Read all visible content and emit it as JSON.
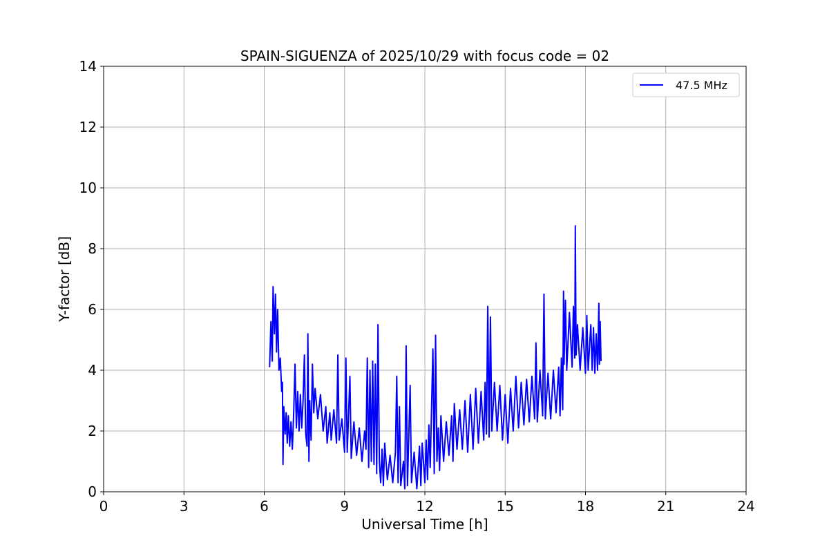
{
  "chart_data": {
    "type": "line",
    "title": "SPAIN-SIGUENZA of 2025/10/29 with focus code = 02",
    "xlabel": "Universal Time [h]",
    "ylabel": "Y-factor [dB]",
    "xlim": [
      0,
      24
    ],
    "ylim": [
      0,
      14
    ],
    "xticks": [
      0,
      3,
      6,
      9,
      12,
      15,
      18,
      21,
      24
    ],
    "yticks": [
      0,
      2,
      4,
      6,
      8,
      10,
      12,
      14
    ],
    "grid": true,
    "legend_position": "top-right",
    "series": [
      {
        "name": "47.5 MHz",
        "color": "#0000ff",
        "points": [
          [
            6.2,
            4.1
          ],
          [
            6.25,
            5.6
          ],
          [
            6.3,
            4.3
          ],
          [
            6.33,
            6.75
          ],
          [
            6.38,
            5.2
          ],
          [
            6.42,
            6.5
          ],
          [
            6.46,
            4.6
          ],
          [
            6.5,
            6.0
          ],
          [
            6.55,
            4.0
          ],
          [
            6.6,
            4.4
          ],
          [
            6.65,
            3.3
          ],
          [
            6.68,
            3.6
          ],
          [
            6.7,
            0.9
          ],
          [
            6.73,
            2.8
          ],
          [
            6.78,
            1.9
          ],
          [
            6.82,
            2.6
          ],
          [
            6.86,
            1.6
          ],
          [
            6.9,
            2.5
          ],
          [
            6.95,
            1.5
          ],
          [
            7.0,
            2.3
          ],
          [
            7.05,
            1.4
          ],
          [
            7.1,
            2.6
          ],
          [
            7.15,
            4.2
          ],
          [
            7.2,
            2.1
          ],
          [
            7.25,
            3.3
          ],
          [
            7.3,
            2.0
          ],
          [
            7.35,
            3.2
          ],
          [
            7.4,
            2.1
          ],
          [
            7.45,
            3.0
          ],
          [
            7.5,
            4.5
          ],
          [
            7.55,
            1.9
          ],
          [
            7.6,
            1.5
          ],
          [
            7.63,
            5.2
          ],
          [
            7.67,
            1.0
          ],
          [
            7.7,
            3.0
          ],
          [
            7.75,
            1.7
          ],
          [
            7.8,
            4.2
          ],
          [
            7.85,
            2.6
          ],
          [
            7.9,
            3.4
          ],
          [
            8.0,
            2.4
          ],
          [
            8.1,
            3.2
          ],
          [
            8.2,
            2.0
          ],
          [
            8.3,
            2.8
          ],
          [
            8.35,
            1.6
          ],
          [
            8.45,
            2.6
          ],
          [
            8.5,
            1.7
          ],
          [
            8.6,
            2.7
          ],
          [
            8.7,
            1.6
          ],
          [
            8.75,
            4.5
          ],
          [
            8.8,
            1.7
          ],
          [
            8.9,
            2.4
          ],
          [
            9.0,
            1.3
          ],
          [
            9.05,
            4.4
          ],
          [
            9.1,
            1.3
          ],
          [
            9.2,
            3.8
          ],
          [
            9.25,
            1.1
          ],
          [
            9.35,
            2.3
          ],
          [
            9.45,
            1.2
          ],
          [
            9.55,
            2.1
          ],
          [
            9.65,
            1.0
          ],
          [
            9.75,
            2.0
          ],
          [
            9.8,
            1.4
          ],
          [
            9.85,
            4.4
          ],
          [
            9.9,
            0.8
          ],
          [
            9.95,
            4.0
          ],
          [
            10.0,
            1.0
          ],
          [
            10.05,
            4.3
          ],
          [
            10.1,
            0.9
          ],
          [
            10.15,
            4.2
          ],
          [
            10.2,
            0.6
          ],
          [
            10.25,
            5.5
          ],
          [
            10.3,
            1.0
          ],
          [
            10.35,
            0.3
          ],
          [
            10.4,
            1.4
          ],
          [
            10.45,
            0.2
          ],
          [
            10.5,
            1.6
          ],
          [
            10.6,
            0.4
          ],
          [
            10.7,
            1.2
          ],
          [
            10.8,
            0.3
          ],
          [
            10.9,
            1.3
          ],
          [
            10.95,
            3.8
          ],
          [
            11.0,
            0.3
          ],
          [
            11.05,
            2.8
          ],
          [
            11.1,
            0.2
          ],
          [
            11.2,
            1.0
          ],
          [
            11.25,
            0.1
          ],
          [
            11.3,
            4.8
          ],
          [
            11.35,
            0.2
          ],
          [
            11.45,
            3.5
          ],
          [
            11.5,
            0.3
          ],
          [
            11.6,
            1.3
          ],
          [
            11.7,
            0.1
          ],
          [
            11.8,
            1.5
          ],
          [
            11.85,
            0.2
          ],
          [
            11.9,
            1.6
          ],
          [
            12.0,
            0.3
          ],
          [
            12.05,
            1.7
          ],
          [
            12.1,
            0.4
          ],
          [
            12.15,
            2.2
          ],
          [
            12.2,
            0.8
          ],
          [
            12.3,
            4.7
          ],
          [
            12.35,
            0.6
          ],
          [
            12.4,
            5.15
          ],
          [
            12.45,
            1.0
          ],
          [
            12.5,
            2.1
          ],
          [
            12.55,
            0.7
          ],
          [
            12.6,
            2.5
          ],
          [
            12.7,
            1.0
          ],
          [
            12.8,
            2.3
          ],
          [
            12.9,
            1.2
          ],
          [
            13.0,
            2.5
          ],
          [
            13.05,
            1.0
          ],
          [
            13.1,
            2.9
          ],
          [
            13.2,
            1.4
          ],
          [
            13.3,
            2.7
          ],
          [
            13.4,
            1.4
          ],
          [
            13.5,
            3.0
          ],
          [
            13.6,
            1.3
          ],
          [
            13.7,
            3.2
          ],
          [
            13.8,
            1.4
          ],
          [
            13.9,
            3.4
          ],
          [
            14.0,
            1.6
          ],
          [
            14.1,
            3.3
          ],
          [
            14.2,
            1.7
          ],
          [
            14.25,
            3.6
          ],
          [
            14.3,
            1.9
          ],
          [
            14.35,
            6.1
          ],
          [
            14.4,
            1.8
          ],
          [
            14.45,
            5.75
          ],
          [
            14.5,
            2.0
          ],
          [
            14.6,
            3.6
          ],
          [
            14.7,
            2.0
          ],
          [
            14.8,
            3.5
          ],
          [
            14.9,
            1.7
          ],
          [
            15.0,
            3.2
          ],
          [
            15.1,
            1.6
          ],
          [
            15.2,
            3.4
          ],
          [
            15.3,
            2.0
          ],
          [
            15.4,
            3.8
          ],
          [
            15.5,
            2.1
          ],
          [
            15.6,
            3.6
          ],
          [
            15.7,
            2.2
          ],
          [
            15.8,
            3.7
          ],
          [
            15.9,
            2.3
          ],
          [
            16.0,
            3.8
          ],
          [
            16.1,
            2.4
          ],
          [
            16.15,
            4.9
          ],
          [
            16.2,
            2.3
          ],
          [
            16.3,
            4.0
          ],
          [
            16.4,
            2.5
          ],
          [
            16.45,
            6.5
          ],
          [
            16.5,
            2.4
          ],
          [
            16.6,
            3.9
          ],
          [
            16.7,
            2.4
          ],
          [
            16.8,
            4.0
          ],
          [
            16.9,
            2.6
          ],
          [
            17.0,
            4.1
          ],
          [
            17.05,
            2.5
          ],
          [
            17.1,
            4.4
          ],
          [
            17.15,
            2.7
          ],
          [
            17.18,
            6.6
          ],
          [
            17.2,
            4.2
          ],
          [
            17.25,
            6.3
          ],
          [
            17.3,
            4.0
          ],
          [
            17.4,
            5.9
          ],
          [
            17.5,
            4.1
          ],
          [
            17.55,
            6.1
          ],
          [
            17.6,
            4.4
          ],
          [
            17.62,
            8.75
          ],
          [
            17.65,
            4.5
          ],
          [
            17.7,
            5.5
          ],
          [
            17.8,
            4.0
          ],
          [
            17.9,
            5.4
          ],
          [
            18.0,
            3.9
          ],
          [
            18.05,
            5.8
          ],
          [
            18.1,
            4.0
          ],
          [
            18.2,
            5.5
          ],
          [
            18.25,
            4.0
          ],
          [
            18.3,
            5.4
          ],
          [
            18.35,
            3.9
          ],
          [
            18.4,
            5.2
          ],
          [
            18.45,
            4.0
          ],
          [
            18.5,
            6.2
          ],
          [
            18.52,
            4.2
          ],
          [
            18.55,
            5.6
          ],
          [
            18.58,
            4.3
          ]
        ]
      }
    ]
  }
}
